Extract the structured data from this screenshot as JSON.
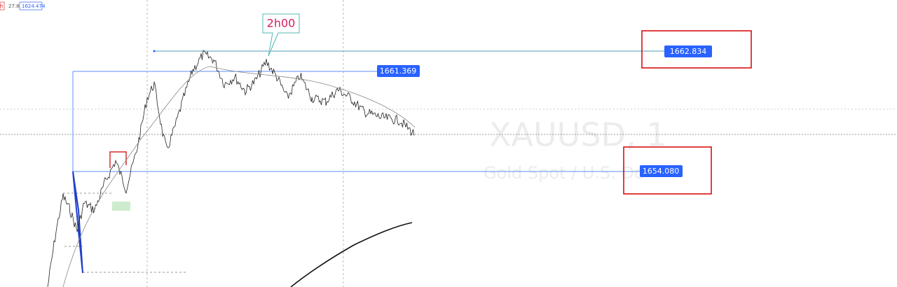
{
  "toolbar": {
    "cut_label": "h",
    "value_a": "27.8",
    "value_b": "1624.474"
  },
  "watermark": {
    "symbol": "XAUUSD, 1",
    "description": "Gold Spot / U.S. Do"
  },
  "annotation": "2h00",
  "price_labels": [
    "1662.834",
    "1661.369",
    "1654.080"
  ]
}
